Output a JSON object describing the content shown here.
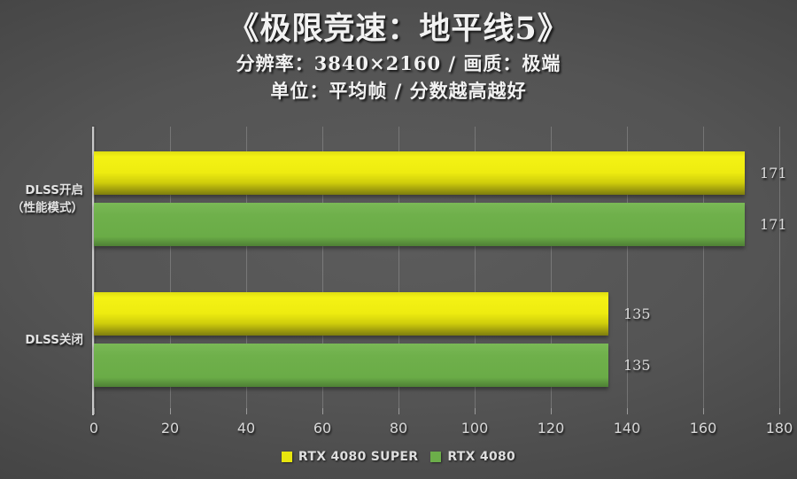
{
  "header": {
    "title": "《极限竞速：地平线5》",
    "subtitle1": "分辨率：3840×2160 / 画质：极端",
    "subtitle2": "单位：平均帧 / 分数越高越好"
  },
  "colors": {
    "series_yellow": "#e8e60e",
    "series_green": "#6cae4a",
    "background_center": "#5c5c5c",
    "background_edge": "#282828",
    "text": "#f2f2f2",
    "gridline": "#cdcdcd"
  },
  "chart_data": {
    "type": "bar",
    "orientation": "horizontal",
    "title": "《极限竞速：地平线5》",
    "subtitle": "分辨率：3840×2160 / 画质：极端 | 单位：平均帧 / 分数越高越好",
    "categories": [
      "DLSS开启（性能模式）",
      "DLSS关闭"
    ],
    "category_lines": [
      [
        "DLSS开启",
        "（性能模式）"
      ],
      [
        "DLSS关闭"
      ]
    ],
    "series": [
      {
        "name": "RTX 4080 SUPER",
        "color": "#e8e60e",
        "values": [
          171,
          135
        ]
      },
      {
        "name": "RTX 4080",
        "color": "#6cae4a",
        "values": [
          171,
          135
        ]
      }
    ],
    "xlim": [
      0,
      180
    ],
    "xticks": [
      0,
      20,
      40,
      60,
      80,
      100,
      120,
      140,
      160,
      180
    ],
    "grid": true,
    "legend_position": "bottom",
    "value_labels_shown": true
  }
}
